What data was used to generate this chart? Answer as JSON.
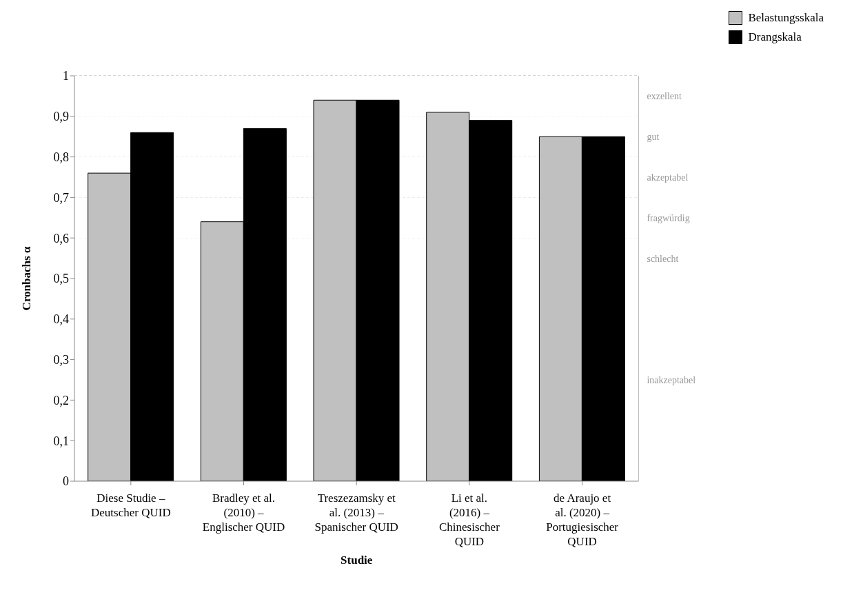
{
  "chart_data": {
    "type": "bar",
    "xlabel": "Studie",
    "ylabel": "Cronbachs α",
    "categories": [
      "Diese Studie – Deutscher QUID",
      "Bradley et al. (2010) – Englischer QUID",
      "Treszezamsky et al. (2013) – Spanischer QUID",
      "Li et al. (2016) – Chinesischer QUID",
      "de Araujo et al. (2020) – Portugiesischer QUID"
    ],
    "series": [
      {
        "name": "Belastungsskala",
        "color": "#c0c0c0",
        "values": [
          0.76,
          0.64,
          0.94,
          0.91,
          0.85
        ]
      },
      {
        "name": "Drangskala",
        "color": "#000000",
        "values": [
          0.86,
          0.87,
          0.94,
          0.89,
          0.85
        ]
      }
    ],
    "ylim": [
      0,
      1
    ],
    "yticks": [
      0,
      {
        "value": 0.1,
        "label": "0,1"
      },
      {
        "value": 0.2,
        "label": "0,2"
      },
      {
        "value": 0.3,
        "label": "0,3"
      },
      {
        "value": 0.4,
        "label": "0,4"
      },
      {
        "value": 0.5,
        "label": "0,5"
      },
      {
        "value": 0.6,
        "label": "0,6"
      },
      {
        "value": 0.7,
        "label": "0,7"
      },
      {
        "value": 0.8,
        "label": "0,8"
      },
      {
        "value": 0.9,
        "label": "0,9"
      },
      1
    ],
    "bands": [
      {
        "axis": "y",
        "from": 0.9,
        "to": 1,
        "label": "exzellent"
      },
      {
        "axis": "y",
        "from": 0.8,
        "to": 0.9,
        "label": "gut"
      },
      {
        "axis": "y",
        "from": 0.7,
        "to": 0.8,
        "label": "akzeptabel"
      },
      {
        "axis": "y",
        "from": 0.6,
        "to": 0.7,
        "label": "fragwürdig"
      },
      {
        "axis": "y",
        "from": 0.5,
        "to": 0.6,
        "label": "schlecht"
      },
      {
        "axis": "y",
        "from": 0,
        "to": 0.5,
        "label": "inakzeptabel"
      }
    ],
    "grid": "y",
    "legend": "top right"
  }
}
